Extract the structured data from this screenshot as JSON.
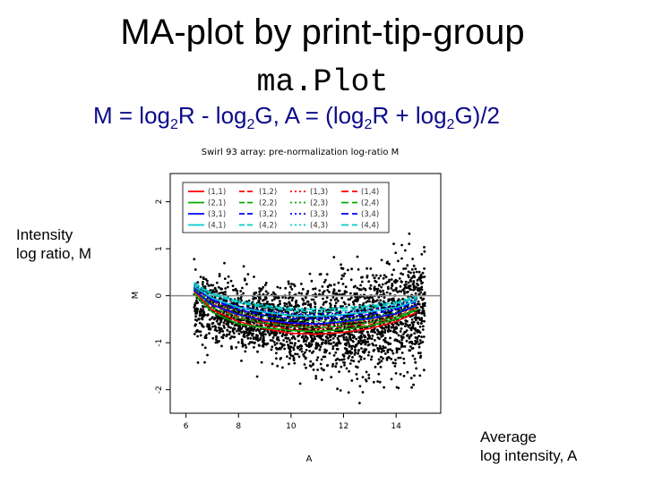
{
  "slide": {
    "title": "MA-plot by print-tip-group",
    "subtitle": "ma.Plot",
    "formula": {
      "m_lhs": "M = log",
      "m_mid": "R - log",
      "m_end": "G,   A = (log",
      "a_mid": "R + log",
      "a_end": "G)/2",
      "sub": "2"
    },
    "ylabel_line1": "Intensity",
    "ylabel_line2": "log ratio, M",
    "xlabel_line1": "Average",
    "xlabel_line2": "log intensity, A"
  },
  "chart_data": {
    "type": "scatter",
    "title": "Swirl 93 array: pre-normalization log-ratio M",
    "xlabel": "A",
    "ylabel": "M",
    "xlim": [
      5.4,
      15.7
    ],
    "ylim": [
      -2.5,
      2.6
    ],
    "xticks": [
      "6",
      "8",
      "10",
      "12",
      "14"
    ],
    "yticks": [
      "-2",
      "-1",
      "0",
      "1",
      "2"
    ],
    "reference_line_y": 0,
    "legend_position": "top-left",
    "colors": {
      "1": "#ff0000",
      "2": "#00aa00",
      "3": "#0000ff",
      "4": "#00cccc",
      "points": "#000000",
      "refline": "#888888"
    },
    "legend": [
      [
        "(1,1)",
        "(1,2)",
        "(1,3)",
        "(1,4)"
      ],
      [
        "(2,1)",
        "(2,2)",
        "(2,3)",
        "(2,4)"
      ],
      [
        "(3,1)",
        "(3,2)",
        "(3,3)",
        "(3,4)"
      ],
      [
        "(4,1)",
        "(4,2)",
        "(4,3)",
        "(4,4)"
      ]
    ],
    "series_x": [
      6.3,
      7,
      8,
      9,
      10,
      11,
      12,
      13,
      14,
      14.8
    ],
    "series": [
      {
        "name": "(1,1)",
        "values": [
          0.1,
          -0.3,
          -0.55,
          -0.7,
          -0.8,
          -0.82,
          -0.78,
          -0.7,
          -0.55,
          -0.35
        ]
      },
      {
        "name": "(1,2)",
        "values": [
          0.15,
          -0.2,
          -0.45,
          -0.62,
          -0.72,
          -0.75,
          -0.72,
          -0.62,
          -0.5,
          -0.3
        ]
      },
      {
        "name": "(1,3)",
        "values": [
          0.2,
          -0.12,
          -0.35,
          -0.5,
          -0.6,
          -0.64,
          -0.6,
          -0.52,
          -0.4,
          -0.22
        ]
      },
      {
        "name": "(1,4)",
        "values": [
          0.12,
          -0.18,
          -0.4,
          -0.55,
          -0.65,
          -0.7,
          -0.66,
          -0.58,
          -0.45,
          -0.25
        ]
      },
      {
        "name": "(2,1)",
        "values": [
          0.05,
          -0.35,
          -0.6,
          -0.68,
          -0.74,
          -0.76,
          -0.72,
          -0.64,
          -0.5,
          -0.3
        ]
      },
      {
        "name": "(2,2)",
        "values": [
          0.12,
          -0.25,
          -0.48,
          -0.58,
          -0.65,
          -0.68,
          -0.65,
          -0.57,
          -0.45,
          -0.28
        ]
      },
      {
        "name": "(2,3)",
        "values": [
          0.18,
          -0.15,
          -0.35,
          -0.45,
          -0.52,
          -0.55,
          -0.52,
          -0.45,
          -0.35,
          -0.2
        ]
      },
      {
        "name": "(2,4)",
        "values": [
          0.15,
          -0.2,
          -0.42,
          -0.52,
          -0.58,
          -0.6,
          -0.57,
          -0.5,
          -0.38,
          -0.22
        ]
      },
      {
        "name": "(3,1)",
        "values": [
          0.12,
          -0.2,
          -0.4,
          -0.52,
          -0.58,
          -0.6,
          -0.55,
          -0.48,
          -0.38,
          -0.2
        ]
      },
      {
        "name": "(3,2)",
        "values": [
          0.18,
          -0.1,
          -0.3,
          -0.42,
          -0.48,
          -0.5,
          -0.46,
          -0.4,
          -0.3,
          -0.12
        ]
      },
      {
        "name": "(3,3)",
        "values": [
          0.22,
          -0.05,
          -0.22,
          -0.32,
          -0.38,
          -0.4,
          -0.36,
          -0.3,
          -0.22,
          -0.08
        ]
      },
      {
        "name": "(3,4)",
        "values": [
          0.2,
          -0.08,
          -0.26,
          -0.36,
          -0.42,
          -0.45,
          -0.41,
          -0.35,
          -0.26,
          -0.1
        ]
      },
      {
        "name": "(4,1)",
        "values": [
          0.2,
          -0.05,
          -0.25,
          -0.35,
          -0.42,
          -0.44,
          -0.4,
          -0.34,
          -0.25,
          -0.1
        ]
      },
      {
        "name": "(4,2)",
        "values": [
          0.25,
          0.02,
          -0.15,
          -0.25,
          -0.32,
          -0.35,
          -0.32,
          -0.26,
          -0.18,
          -0.05
        ]
      },
      {
        "name": "(4,3)",
        "values": [
          0.28,
          0.06,
          -0.1,
          -0.2,
          -0.26,
          -0.28,
          -0.25,
          -0.2,
          -0.12,
          0.0
        ]
      },
      {
        "name": "(4,4)",
        "values": [
          0.26,
          0.04,
          -0.12,
          -0.22,
          -0.28,
          -0.3,
          -0.27,
          -0.22,
          -0.15,
          -0.02
        ]
      }
    ]
  }
}
